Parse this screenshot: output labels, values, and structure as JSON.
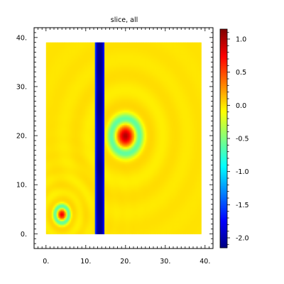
{
  "chart_data": {
    "type": "heatmap",
    "title": "slice, all",
    "xlabel": "",
    "ylabel": "",
    "xlim": [
      -3,
      42
    ],
    "ylim": [
      -3,
      42
    ],
    "data_extent": {
      "x": [
        0,
        39
      ],
      "y": [
        0,
        39
      ]
    },
    "x_ticks": [
      0,
      10,
      20,
      30,
      40
    ],
    "x_tick_labels": [
      "0.",
      "10.",
      "20.",
      "30.",
      "40."
    ],
    "y_ticks": [
      0,
      10,
      20,
      30,
      40
    ],
    "y_tick_labels": [
      "0.",
      "10.",
      "20.",
      "30.",
      "40."
    ],
    "colorbar": {
      "range": [
        -2.15,
        1.15
      ],
      "ticks": [
        1.0,
        0.5,
        0.0,
        -0.5,
        -1.0,
        -1.5,
        -2.0
      ],
      "tick_labels": [
        "1.0",
        "0.5",
        "0.0",
        "-0.5",
        "-1.0",
        "-1.5",
        "-2.0"
      ],
      "colormap": "jet"
    },
    "background_value": 0.0,
    "features": [
      {
        "type": "vertical_band",
        "x_range": [
          12.3,
          14.8
        ],
        "value": -2.1,
        "edge_value": -1.3
      },
      {
        "type": "radial_peak",
        "center": [
          20,
          20
        ],
        "peak": 0.9,
        "ring_value": -0.6,
        "ring_radius": 3.5
      },
      {
        "type": "radial_peak",
        "center": [
          4,
          4
        ],
        "peak": 0.7,
        "ring_value": -0.6,
        "ring_radius": 1.7
      }
    ]
  }
}
